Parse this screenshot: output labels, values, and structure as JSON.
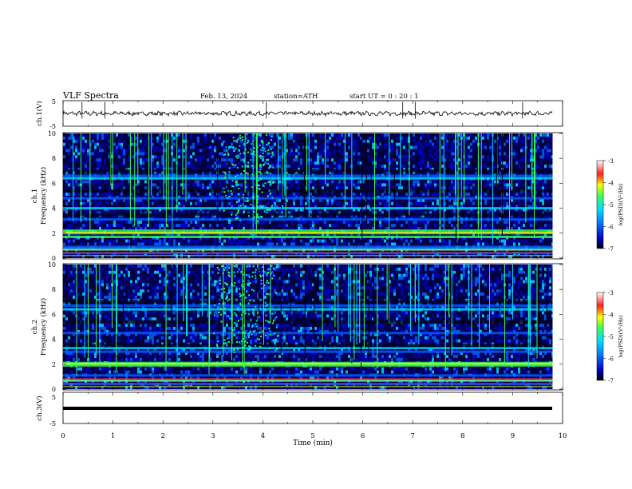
{
  "header": {
    "title": "VLF  Spectra",
    "date": "Feb. 13, 2024",
    "station": "station=ATH",
    "start": "start  UT  =    0  : 20 : 1"
  },
  "chart_data": [
    {
      "type": "line",
      "panel": "ch1-waveform",
      "ylabel": "ch.1(V)",
      "ylim": [
        -5,
        5
      ],
      "yticks": [
        "5",
        "-5"
      ],
      "xlim": [
        0,
        10
      ],
      "baseline": 0,
      "spikes_min": [
        0.38,
        0.84,
        4.07,
        6.8,
        7.05,
        9.2
      ]
    },
    {
      "type": "heatmap",
      "panel": "ch1-spectrogram",
      "ylabel": "ch.1\nFrequency  (kHz)",
      "ylim": [
        0,
        10
      ],
      "yticks": [
        "0",
        "2",
        "4",
        "6",
        "8",
        "10"
      ],
      "xlim": [
        0,
        9.8
      ],
      "bands_khz": [
        0.4,
        0.7,
        0.9,
        1.7,
        2.0,
        2.2,
        3.1,
        4.0,
        4.8,
        6.4,
        6.6
      ],
      "bright_burst_min": [
        3.2,
        4.2
      ]
    },
    {
      "type": "heatmap",
      "panel": "ch2-spectrogram",
      "ylabel": "ch.2\nFrequency  (kHz)",
      "ylim": [
        0,
        10
      ],
      "yticks": [
        "0",
        "2",
        "4",
        "6",
        "8",
        "10"
      ],
      "xlim": [
        0,
        9.8
      ],
      "bands_khz": [
        0.4,
        0.7,
        1.1,
        1.9,
        2.0,
        2.1,
        3.0,
        3.3,
        4.5,
        6.4,
        6.7
      ],
      "bright_burst_min": [
        3.0,
        4.3
      ]
    },
    {
      "type": "line",
      "panel": "ch3-waveform",
      "ylabel": "ch.3(V)",
      "ylim": [
        -5,
        5
      ],
      "yticks": [
        "5",
        "-5"
      ],
      "xlim": [
        0,
        10
      ],
      "xticks": [
        "0",
        "1",
        "2",
        "3",
        "4",
        "5",
        "6",
        "7",
        "8",
        "9",
        "10"
      ],
      "xlabel": "Time  (min)",
      "baseline": 0
    }
  ],
  "colorbars": [
    {
      "label": "log(PSD)(V²/Hz)",
      "ticks": [
        "-3",
        "-4",
        "-5",
        "-6",
        "-7"
      ]
    },
    {
      "label": "log(PSD)(V²/Hz)",
      "ticks": [
        "-3",
        "-4",
        "-5",
        "-6",
        "-7"
      ]
    }
  ],
  "colors": {
    "background": "#000040",
    "blue": "#0000c8",
    "mid_blue": "#0060ff",
    "cyan": "#00e0ff",
    "green": "#3cff50",
    "yellow": "#ffff00",
    "red": "#ff2020"
  }
}
